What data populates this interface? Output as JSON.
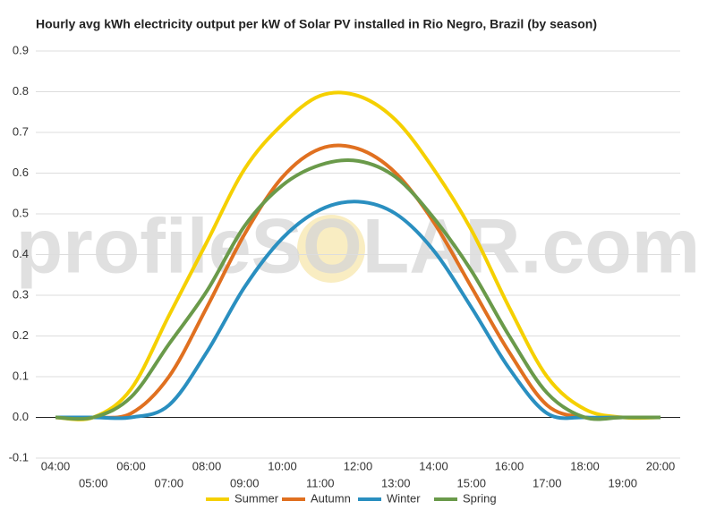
{
  "chart_data": {
    "type": "line",
    "title": "Hourly avg kWh electricity output per kW of Solar PV installed in Rio Negro, Brazil (by season)",
    "watermark": "profileSOLAR.com",
    "categories": [
      "04:00",
      "05:00",
      "06:00",
      "07:00",
      "08:00",
      "09:00",
      "10:00",
      "11:00",
      "12:00",
      "13:00",
      "14:00",
      "15:00",
      "16:00",
      "17:00",
      "18:00",
      "19:00",
      "20:00"
    ],
    "series": [
      {
        "name": "Summer",
        "color": "#f5d000",
        "values": [
          0,
          0,
          0.07,
          0.25,
          0.43,
          0.61,
          0.72,
          0.79,
          0.79,
          0.73,
          0.61,
          0.46,
          0.27,
          0.1,
          0.02,
          0,
          0
        ]
      },
      {
        "name": "Autumn",
        "color": "#e07020",
        "values": [
          0,
          0,
          0.01,
          0.1,
          0.27,
          0.45,
          0.59,
          0.66,
          0.66,
          0.6,
          0.48,
          0.32,
          0.16,
          0.03,
          0,
          0,
          0
        ]
      },
      {
        "name": "Winter",
        "color": "#2a8fc0",
        "values": [
          0,
          0,
          0,
          0.03,
          0.16,
          0.32,
          0.44,
          0.51,
          0.53,
          0.5,
          0.41,
          0.27,
          0.12,
          0.01,
          0,
          0,
          0
        ]
      },
      {
        "name": "Spring",
        "color": "#6a9a4a",
        "values": [
          0,
          0,
          0.05,
          0.18,
          0.31,
          0.47,
          0.57,
          0.62,
          0.63,
          0.59,
          0.49,
          0.36,
          0.2,
          0.06,
          0,
          0,
          0
        ]
      }
    ],
    "ylim": [
      -0.1,
      0.9
    ],
    "yticks": [
      -0.1,
      {
        "value": 0,
        "label": "0.0"
      },
      0.1,
      0.2,
      0.3,
      0.4,
      0.5,
      0.6,
      0.7,
      0.8,
      0.9
    ],
    "grid": true,
    "legend": "bottom"
  }
}
